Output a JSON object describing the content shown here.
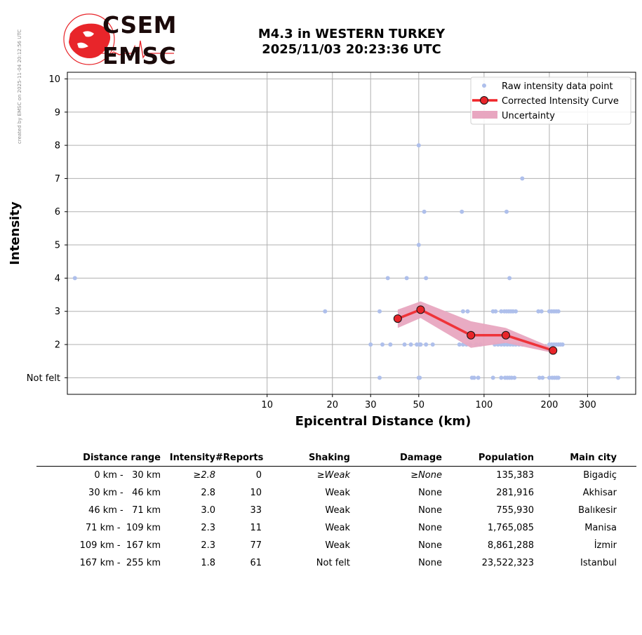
{
  "credit": "created by EMSC on 2025-11-04 20:12:56 UTC",
  "logo": {
    "top_text": "CSEM",
    "bottom_text": "EMSC"
  },
  "title": {
    "line1": "M4.3 in WESTERN TURKEY",
    "line2": "2025/11/03 20:23:36 UTC"
  },
  "colors": {
    "raw": "#aebfeb",
    "curve": "#f0262a",
    "marker": "#e8252a",
    "uncertainty": "#e8a6c0",
    "grid": "#b0b0b0"
  },
  "chart_data": {
    "type": "scatter",
    "xlabel": "Epicentral Distance (km)",
    "ylabel": "Intensity",
    "xscale": "log",
    "xlim": [
      1.2,
      500
    ],
    "ylim": [
      0.5,
      10.2
    ],
    "xticks": [
      10,
      20,
      30,
      50,
      100,
      200,
      300
    ],
    "xtick_labels": [
      "10",
      "20",
      "30",
      "50",
      "100",
      "200",
      "300"
    ],
    "yticks": [
      1,
      2,
      3,
      4,
      5,
      6,
      7,
      8,
      9,
      10
    ],
    "ytick_labels": [
      "Not felt",
      "2",
      "3",
      "4",
      "5",
      "6",
      "7",
      "8",
      "9",
      "10"
    ],
    "grid": true,
    "legend_position": "top-right",
    "legend": [
      "Raw intensity data point",
      "Corrected Intensity Curve",
      "Uncertainty"
    ],
    "raw_points": [
      [
        1.3,
        4
      ],
      [
        18.5,
        3
      ],
      [
        33,
        3
      ],
      [
        36,
        4
      ],
      [
        44,
        4
      ],
      [
        54,
        4
      ],
      [
        50,
        8
      ],
      [
        53,
        6
      ],
      [
        50,
        5
      ],
      [
        150,
        7
      ],
      [
        79,
        6
      ],
      [
        127,
        6
      ],
      [
        131,
        4
      ],
      [
        30,
        2
      ],
      [
        34,
        2
      ],
      [
        37,
        2
      ],
      [
        43,
        2
      ],
      [
        46,
        2
      ],
      [
        49,
        2
      ],
      [
        50.5,
        2
      ],
      [
        51,
        2
      ],
      [
        54,
        2
      ],
      [
        58,
        2
      ],
      [
        77,
        2
      ],
      [
        80,
        2
      ],
      [
        83,
        2
      ],
      [
        86,
        2
      ],
      [
        92,
        2
      ],
      [
        96,
        2
      ],
      [
        112,
        2
      ],
      [
        116,
        2
      ],
      [
        120,
        2
      ],
      [
        124,
        2
      ],
      [
        128,
        2
      ],
      [
        132,
        2
      ],
      [
        136,
        2
      ],
      [
        140,
        2
      ],
      [
        145,
        2
      ],
      [
        150,
        2
      ],
      [
        200,
        2
      ],
      [
        205,
        2
      ],
      [
        210,
        2
      ],
      [
        215,
        2
      ],
      [
        220,
        2
      ],
      [
        225,
        2
      ],
      [
        230,
        2
      ],
      [
        80,
        3
      ],
      [
        84,
        3
      ],
      [
        110,
        3
      ],
      [
        113,
        3
      ],
      [
        120,
        3
      ],
      [
        124,
        3
      ],
      [
        127,
        3
      ],
      [
        130,
        3
      ],
      [
        133,
        3
      ],
      [
        136,
        3
      ],
      [
        140,
        3
      ],
      [
        178,
        3
      ],
      [
        184,
        3
      ],
      [
        200,
        3
      ],
      [
        205,
        3
      ],
      [
        210,
        3
      ],
      [
        215,
        3
      ],
      [
        220,
        3
      ],
      [
        33,
        1
      ],
      [
        50,
        1
      ],
      [
        50.5,
        1
      ],
      [
        88,
        1
      ],
      [
        90,
        1
      ],
      [
        94,
        1
      ],
      [
        110,
        1
      ],
      [
        120,
        1
      ],
      [
        125,
        1
      ],
      [
        128,
        1
      ],
      [
        131,
        1
      ],
      [
        134,
        1
      ],
      [
        138,
        1
      ],
      [
        180,
        1
      ],
      [
        186,
        1
      ],
      [
        200,
        1
      ],
      [
        206,
        1
      ],
      [
        211,
        1
      ],
      [
        216,
        1
      ],
      [
        220,
        1
      ],
      [
        415,
        1
      ]
    ],
    "corrected_curve": {
      "x": [
        40,
        51,
        87,
        126,
        208
      ],
      "y": [
        2.78,
        3.05,
        2.28,
        2.28,
        1.82
      ]
    },
    "uncertainty": {
      "x": [
        40,
        51,
        87,
        126,
        208
      ],
      "lower": [
        2.5,
        2.8,
        1.9,
        2.05,
        1.75
      ],
      "upper": [
        3.05,
        3.3,
        2.7,
        2.5,
        1.9
      ]
    }
  },
  "table": {
    "headers": [
      "Distance range",
      "Intensity",
      "#Reports",
      "Shaking",
      "Damage",
      "Population",
      "Main city"
    ],
    "rows": [
      [
        "0 km -   30 km",
        "≥2.8",
        "0",
        "≥Weak",
        "≥None",
        "135,383",
        "Bigadiç"
      ],
      [
        "30 km -   46 km",
        "2.8",
        "10",
        "Weak",
        "None",
        "281,916",
        "Akhisar"
      ],
      [
        "46 km -   71 km",
        "3.0",
        "33",
        "Weak",
        "None",
        "755,930",
        "Balıkesir"
      ],
      [
        "71 km -  109 km",
        "2.3",
        "11",
        "Weak",
        "None",
        "1,765,085",
        "Manisa"
      ],
      [
        "109 km -  167 km",
        "2.3",
        "77",
        "Weak",
        "None",
        "8,861,288",
        "İzmir"
      ],
      [
        "167 km -  255 km",
        "1.8",
        "61",
        "Not felt",
        "None",
        "23,522,323",
        "Istanbul"
      ]
    ]
  }
}
